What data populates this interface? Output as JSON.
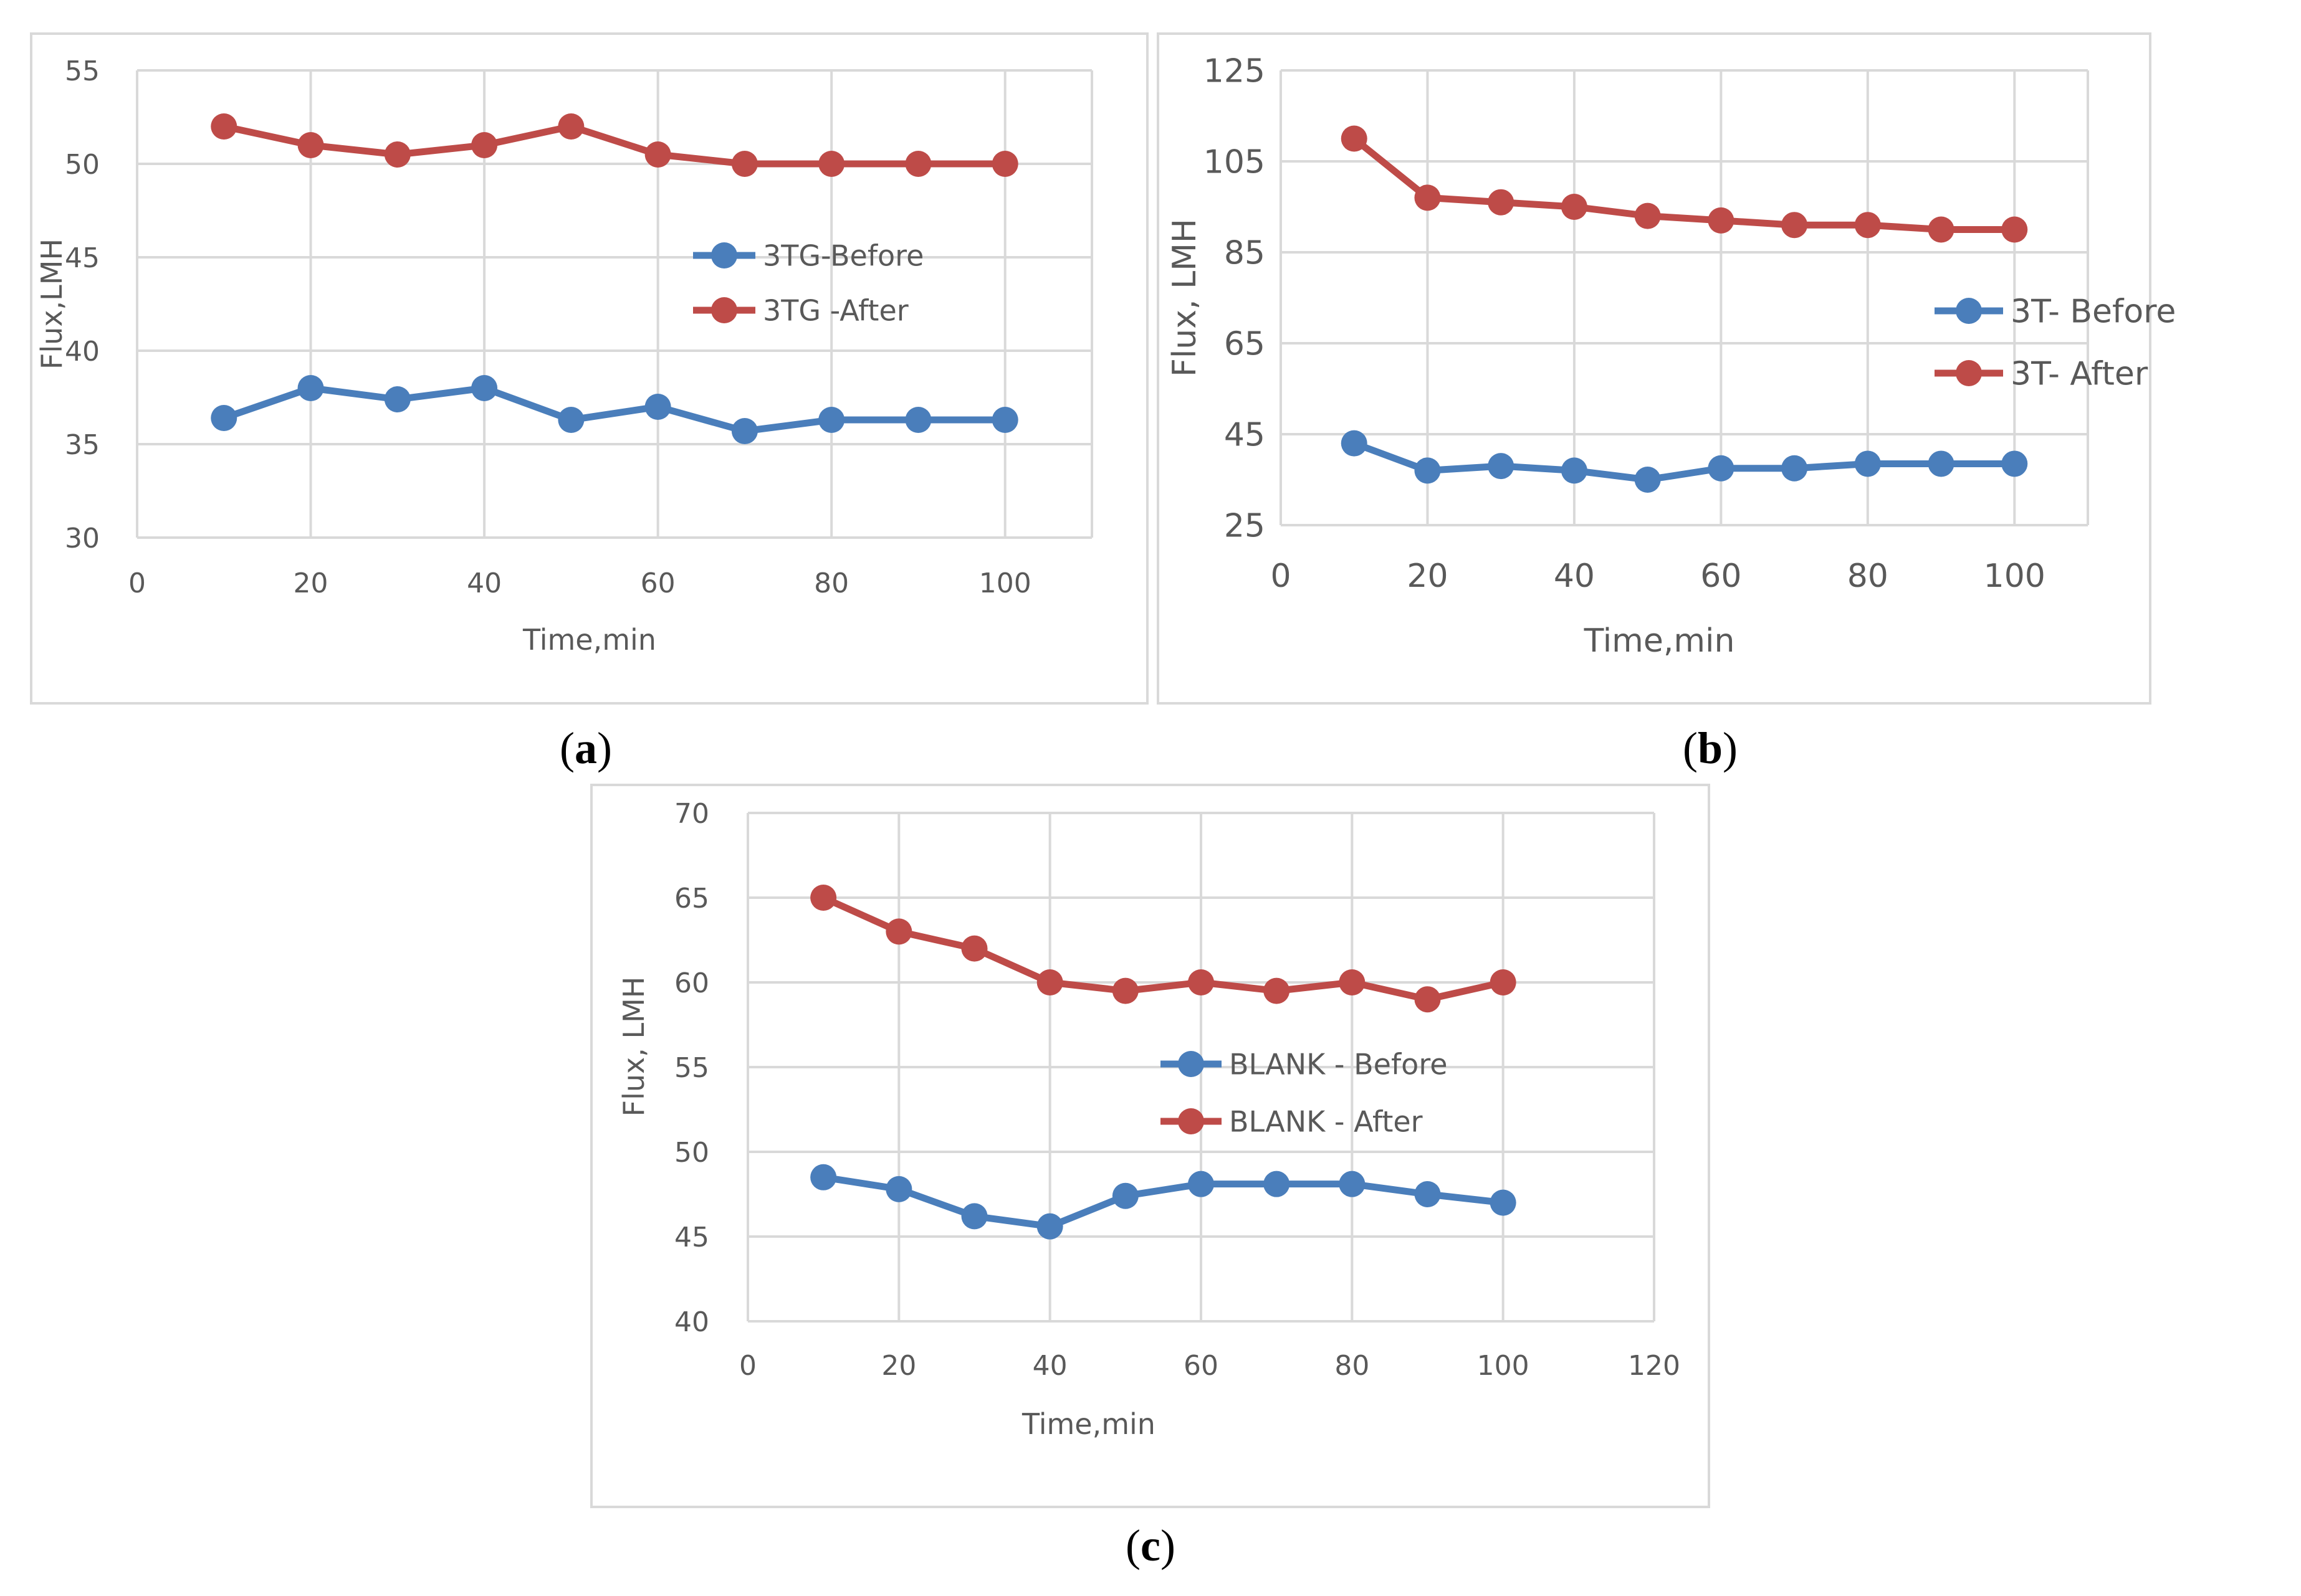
{
  "colors": {
    "before": "#4a7ebb",
    "after": "#be4b48",
    "grid": "#d9d9d9",
    "text": "#595959"
  },
  "captions": {
    "a": "a",
    "b": "b",
    "c": "c"
  },
  "chart_data": [
    {
      "id": "a",
      "type": "line",
      "xlabel": "Time,min",
      "ylabel": "Flux,LMH",
      "xlim": [
        0,
        110
      ],
      "ylim": [
        30,
        55
      ],
      "xticks": [
        0,
        20,
        40,
        60,
        80,
        100
      ],
      "yticks": [
        30,
        35,
        40,
        45,
        50,
        55
      ],
      "x_tick_labels": [
        "0",
        "20",
        "40",
        "60",
        "80",
        "100"
      ],
      "y_tick_labels": [
        "30",
        "35",
        "40",
        "45",
        "50",
        "55"
      ],
      "legend_position": "right",
      "x": [
        10,
        20,
        30,
        40,
        50,
        60,
        70,
        80,
        90,
        100
      ],
      "series": [
        {
          "name": "3TG-Before",
          "color": "#4a7ebb",
          "values": [
            36.4,
            38.0,
            37.4,
            38.0,
            36.3,
            37.0,
            35.7,
            36.3,
            36.3,
            36.3
          ]
        },
        {
          "name": "3TG -After",
          "color": "#be4b48",
          "values": [
            52.0,
            51.0,
            50.5,
            51.0,
            52.0,
            50.5,
            50.0,
            50.0,
            50.0,
            50.0
          ]
        }
      ]
    },
    {
      "id": "b",
      "type": "line",
      "xlabel": "Time,min",
      "ylabel": "Flux, LMH",
      "xlim": [
        0,
        110
      ],
      "ylim": [
        25,
        125
      ],
      "xticks": [
        0,
        20,
        40,
        60,
        80,
        100
      ],
      "yticks": [
        25,
        45,
        65,
        85,
        105,
        125
      ],
      "x_tick_labels": [
        "0",
        "20",
        "40",
        "60",
        "80",
        "100"
      ],
      "y_tick_labels": [
        "25",
        "45",
        "65",
        "85",
        "105",
        "125"
      ],
      "legend_position": "right",
      "x": [
        10,
        20,
        30,
        40,
        50,
        60,
        70,
        80,
        90,
        100
      ],
      "series": [
        {
          "name": "3T- Before",
          "color": "#4a7ebb",
          "values": [
            43,
            37,
            38,
            37,
            35,
            37.5,
            37.5,
            38.5,
            38.5,
            38.5
          ]
        },
        {
          "name": "3T- After",
          "color": "#be4b48",
          "values": [
            110,
            97,
            96,
            95,
            93,
            92,
            91,
            91,
            90,
            90
          ]
        }
      ]
    },
    {
      "id": "c",
      "type": "line",
      "xlabel": "Time,min",
      "ylabel": "Flux, LMH",
      "xlim": [
        0,
        120
      ],
      "ylim": [
        40,
        70
      ],
      "xticks": [
        0,
        20,
        40,
        60,
        80,
        100,
        120
      ],
      "yticks": [
        40,
        45,
        50,
        55,
        60,
        65,
        70
      ],
      "x_tick_labels": [
        "0",
        "20",
        "40",
        "60",
        "80",
        "100",
        "120"
      ],
      "y_tick_labels": [
        "40",
        "45",
        "50",
        "55",
        "60",
        "65",
        "70"
      ],
      "legend_position": "right",
      "x": [
        10,
        20,
        30,
        40,
        50,
        60,
        70,
        80,
        90,
        100
      ],
      "series": [
        {
          "name": "BLANK - Before",
          "color": "#4a7ebb",
          "values": [
            48.5,
            47.8,
            46.2,
            45.6,
            47.4,
            48.1,
            48.1,
            48.1,
            47.5,
            47.0
          ]
        },
        {
          "name": "BLANK - After",
          "color": "#be4b48",
          "values": [
            65,
            63,
            62,
            60,
            59.5,
            60,
            59.5,
            60,
            59,
            60
          ]
        }
      ]
    }
  ]
}
